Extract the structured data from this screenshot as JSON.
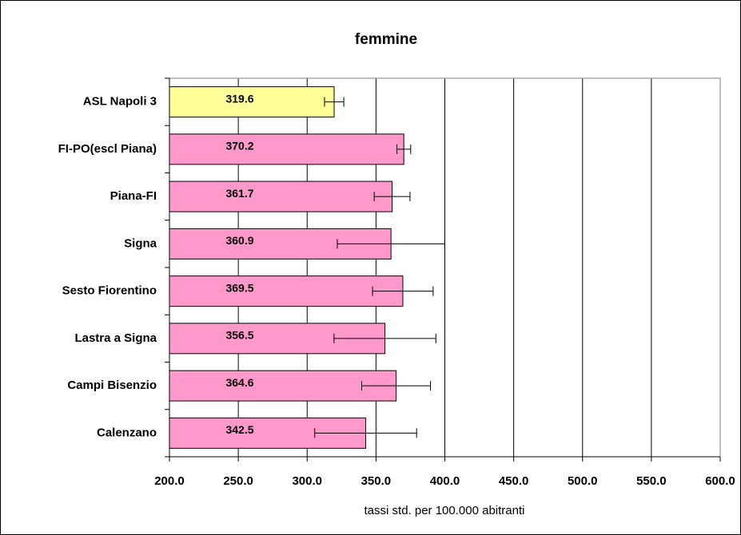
{
  "chart_data": {
    "type": "bar",
    "orientation": "horizontal",
    "title": "femmine",
    "xlabel": "tassi std. per 100.000 abitranti",
    "categories": [
      "ASL Napoli 3",
      "FI-PO(escl Piana)",
      "Piana-FI",
      "Signa",
      "Sesto Fiorentino",
      "Lastra a Signa",
      "Campi Bisenzio",
      "Calenzano"
    ],
    "values": [
      319.6,
      370.2,
      361.7,
      360.9,
      369.5,
      356.5,
      364.6,
      342.5
    ],
    "errors": [
      7,
      5,
      13,
      39,
      22,
      37,
      25,
      37
    ],
    "colors": [
      "#ffff99",
      "#ff99cc",
      "#ff99cc",
      "#ff99cc",
      "#ff99cc",
      "#ff99cc",
      "#ff99cc",
      "#ff99cc"
    ],
    "xlim": [
      200,
      600
    ],
    "xticks": [
      {
        "value": 200,
        "label": "200.0"
      },
      {
        "value": 250,
        "label": "250.0"
      },
      {
        "value": 300,
        "label": "300.0"
      },
      {
        "value": 350,
        "label": "350.0"
      },
      {
        "value": 400,
        "label": "400.0"
      },
      {
        "value": 450,
        "label": "450.0"
      },
      {
        "value": 500,
        "label": "500.0"
      },
      {
        "value": 550,
        "label": "550.0"
      },
      {
        "value": 600,
        "label": "600.0"
      }
    ],
    "grid": true
  }
}
